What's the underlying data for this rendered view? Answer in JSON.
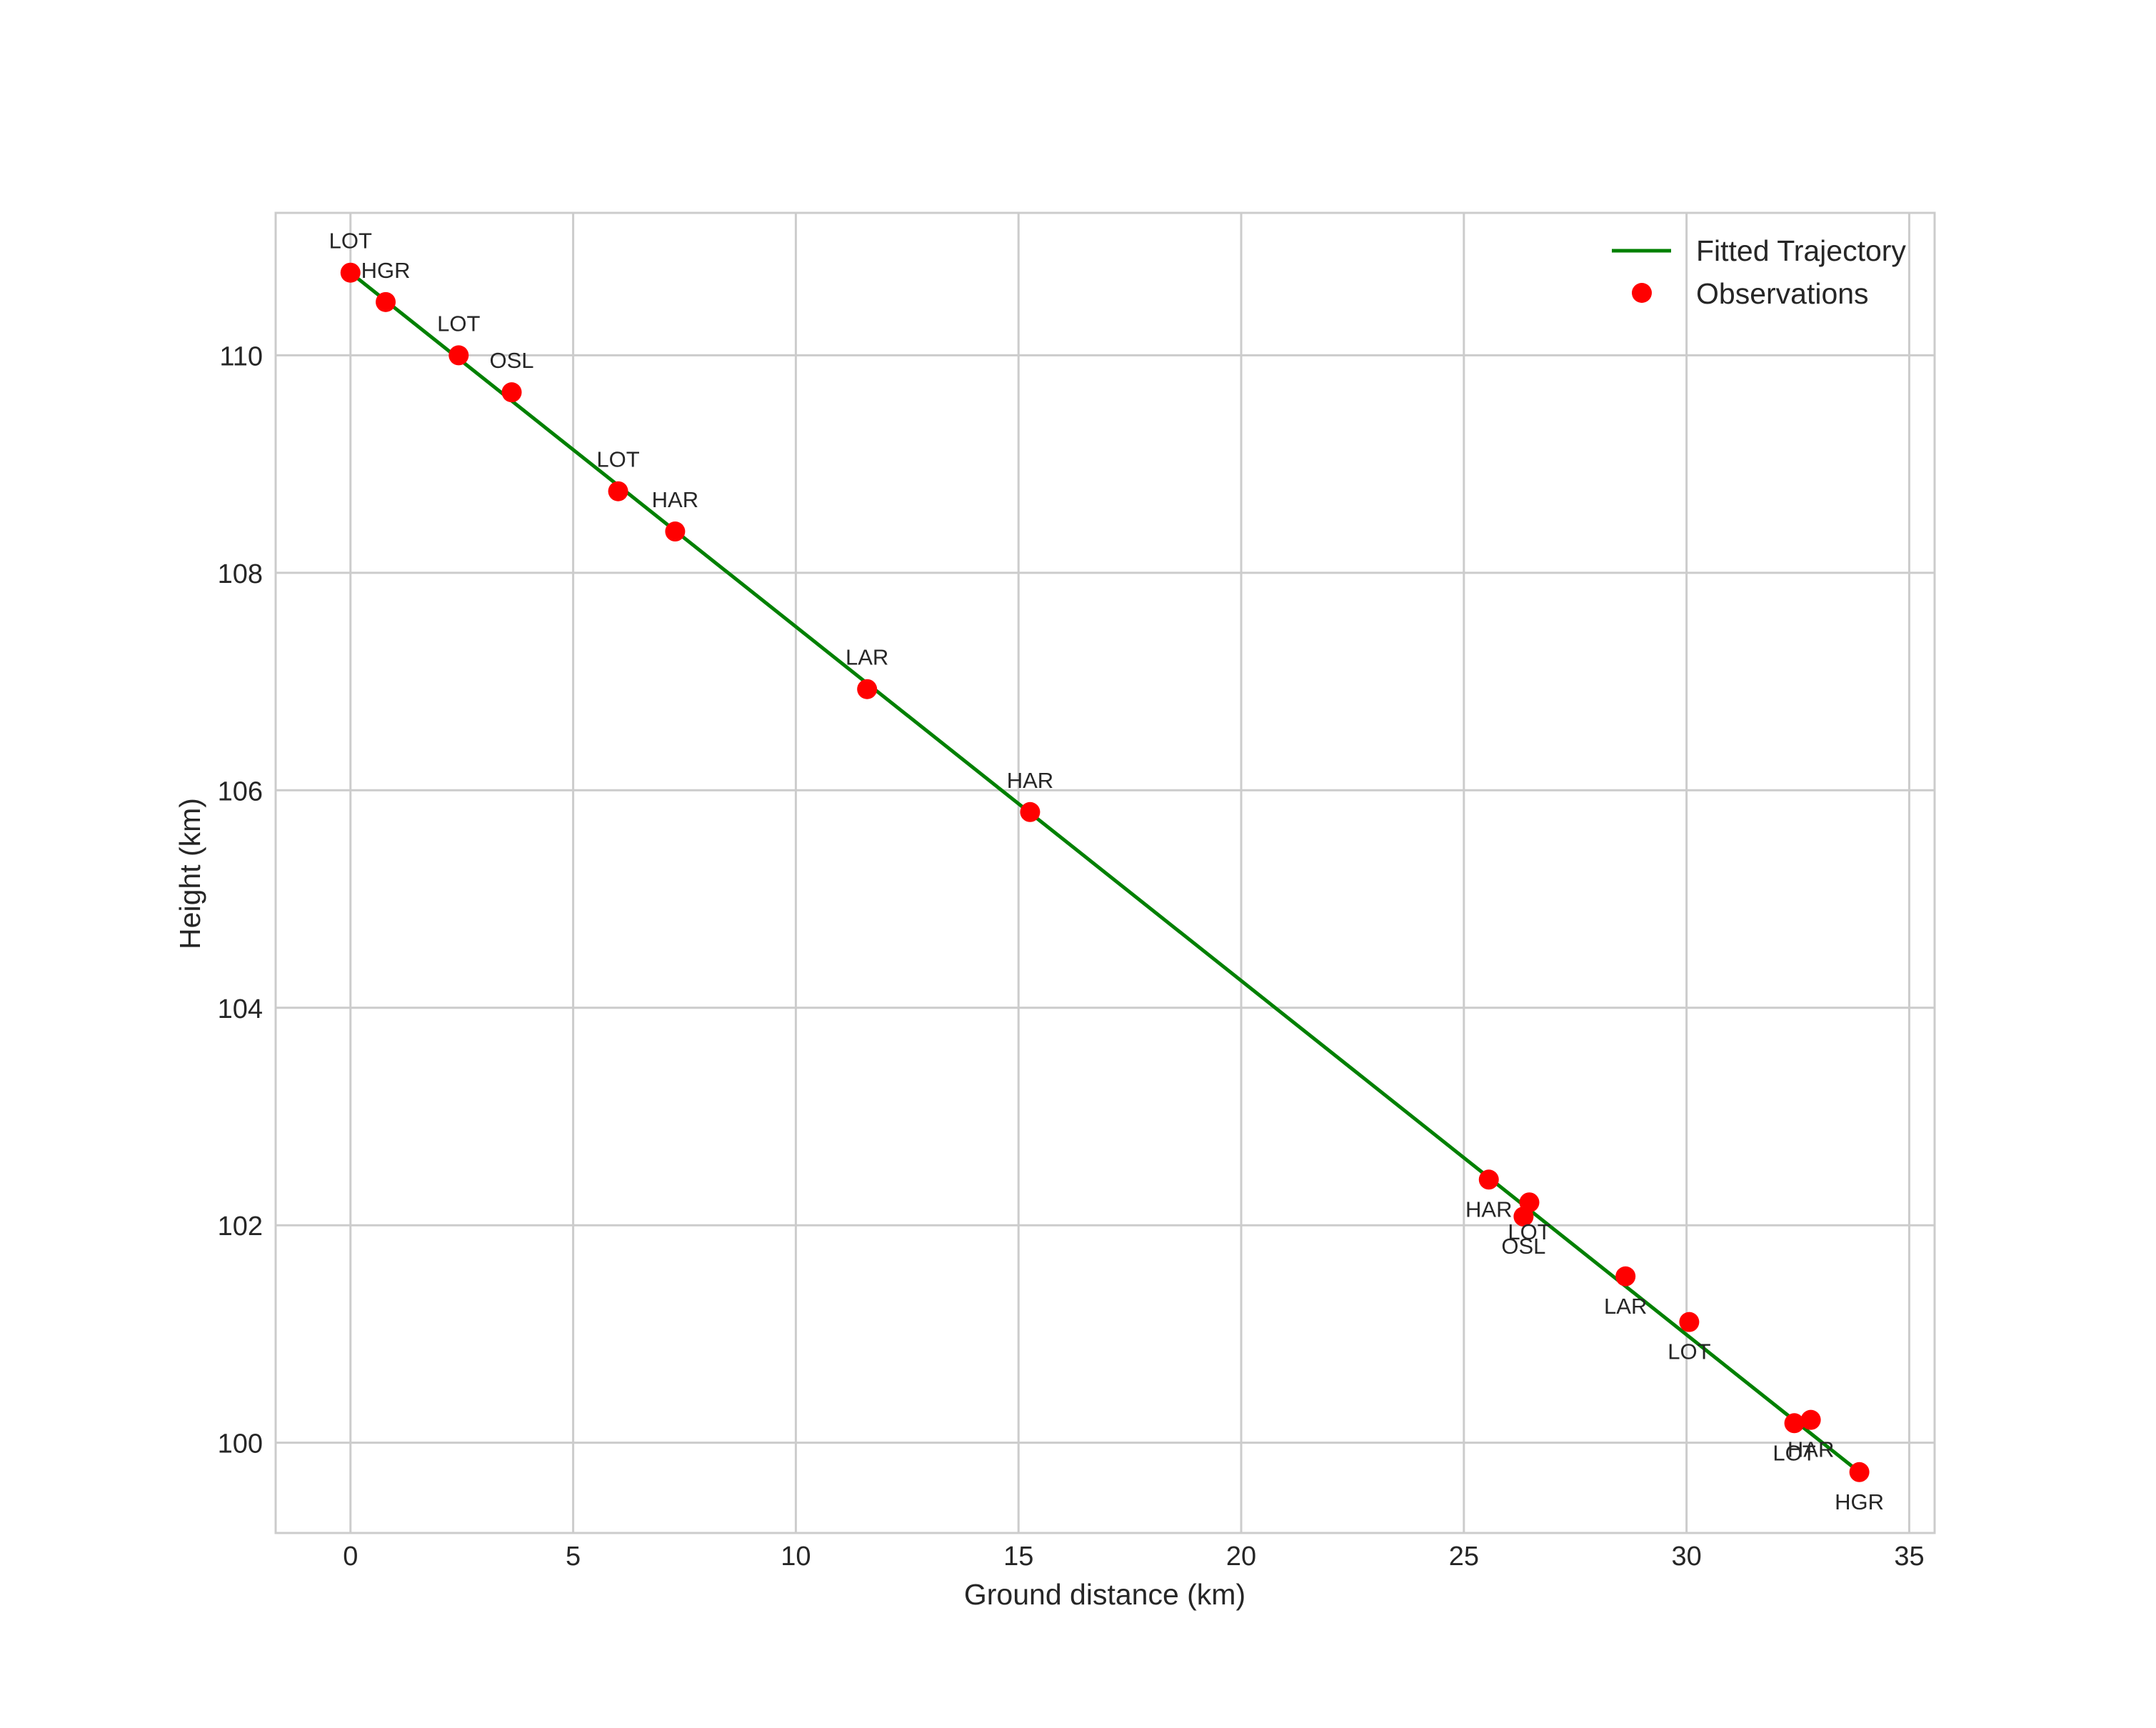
{
  "chart_data": {
    "type": "line",
    "title": "",
    "xlabel": "Ground distance (km)",
    "ylabel": "Height (km)",
    "xlim": [
      -1.68,
      35.57
    ],
    "ylim": [
      99.17,
      111.31
    ],
    "xticks": [
      0,
      5,
      10,
      15,
      20,
      25,
      30,
      35
    ],
    "yticks": [
      100,
      102,
      104,
      106,
      108,
      110
    ],
    "grid": true,
    "legend": {
      "position": "upper right",
      "entries": [
        {
          "label": "Fitted Trajectory",
          "type": "line",
          "color": "#008000"
        },
        {
          "label": "Observations",
          "type": "marker",
          "color": "#ff0000"
        }
      ]
    },
    "series": [
      {
        "name": "Fitted Trajectory",
        "type": "line",
        "color": "#008000",
        "x": [
          0.0,
          33.88
        ],
        "y": [
          110.76,
          99.73
        ]
      },
      {
        "name": "Observations",
        "type": "scatter",
        "color": "#ff0000",
        "points": [
          {
            "x": 0.0,
            "y": 110.76,
            "label": "LOT",
            "label_pos": "above"
          },
          {
            "x": 0.79,
            "y": 110.49,
            "label": "HGR",
            "label_pos": "above"
          },
          {
            "x": 2.43,
            "y": 110.0,
            "label": "LOT",
            "label_pos": "above"
          },
          {
            "x": 3.62,
            "y": 109.66,
            "label": "OSL",
            "label_pos": "above"
          },
          {
            "x": 6.01,
            "y": 108.75,
            "label": "LOT",
            "label_pos": "above"
          },
          {
            "x": 7.29,
            "y": 108.38,
            "label": "HAR",
            "label_pos": "above"
          },
          {
            "x": 11.6,
            "y": 106.93,
            "label": "LAR",
            "label_pos": "above"
          },
          {
            "x": 15.26,
            "y": 105.8,
            "label": "HAR",
            "label_pos": "above"
          },
          {
            "x": 25.56,
            "y": 102.42,
            "label": "HAR",
            "label_pos": "below"
          },
          {
            "x": 26.47,
            "y": 102.21,
            "label": "LOT",
            "label_pos": "below"
          },
          {
            "x": 26.34,
            "y": 102.08,
            "label": "OSL",
            "label_pos": "below"
          },
          {
            "x": 28.63,
            "y": 101.53,
            "label": "LAR",
            "label_pos": "below"
          },
          {
            "x": 30.06,
            "y": 101.11,
            "label": "LOT",
            "label_pos": "below"
          },
          {
            "x": 32.42,
            "y": 100.18,
            "label": "LOT",
            "label_pos": "below"
          },
          {
            "x": 32.79,
            "y": 100.21,
            "label": "HAR",
            "label_pos": "below"
          },
          {
            "x": 33.88,
            "y": 99.73,
            "label": "HGR",
            "label_pos": "below"
          }
        ]
      }
    ]
  },
  "colors": {
    "trajectory": "#008000",
    "observations": "#ff0000",
    "grid": "#cccccc",
    "text": "#262626",
    "background": "#ffffff"
  }
}
